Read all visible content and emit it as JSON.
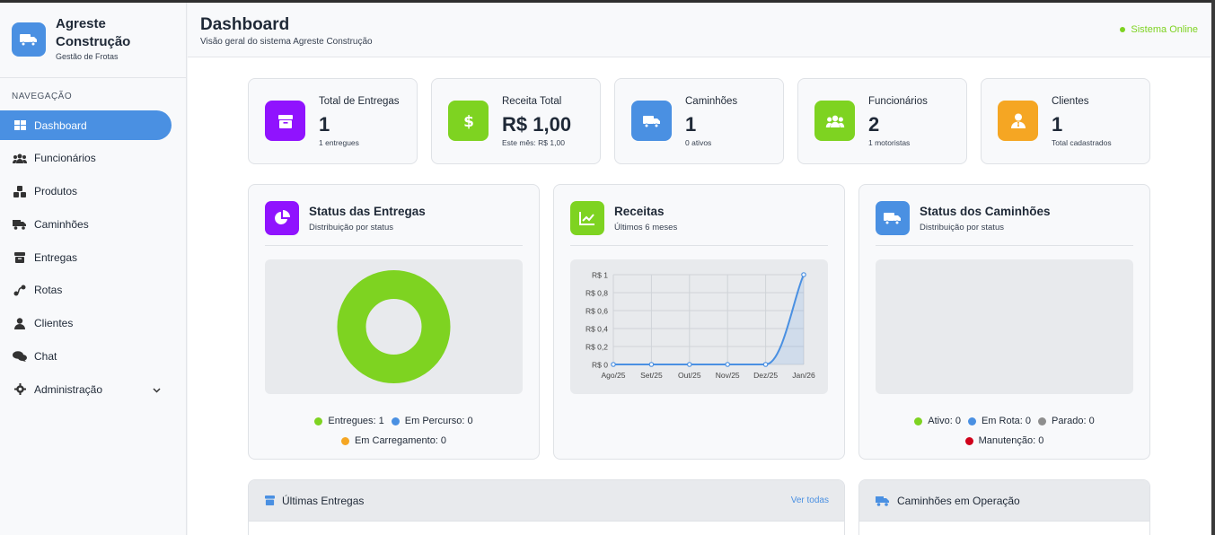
{
  "brand": {
    "name": "Agreste Construção",
    "subtitle": "Gestão de Frotas",
    "logo_icon": "truck-icon"
  },
  "sidebar": {
    "section_title": "NAVEGAÇÃO",
    "items": [
      {
        "label": "Dashboard",
        "icon": "grid-icon",
        "active": true
      },
      {
        "label": "Funcionários",
        "icon": "users-icon"
      },
      {
        "label": "Produtos",
        "icon": "boxes-icon"
      },
      {
        "label": "Caminhões",
        "icon": "truck-icon"
      },
      {
        "label": "Entregas",
        "icon": "box-icon"
      },
      {
        "label": "Rotas",
        "icon": "route-icon"
      },
      {
        "label": "Clientes",
        "icon": "user-icon"
      },
      {
        "label": "Chat",
        "icon": "chat-icon"
      },
      {
        "label": "Administração",
        "icon": "gear-icon",
        "has_submenu": true
      }
    ]
  },
  "header": {
    "title": "Dashboard",
    "subtitle": "Visão geral do sistema Agreste Construção",
    "status": "Sistema Online",
    "status_color": "#7ed321"
  },
  "stats": [
    {
      "label": "Total de Entregas",
      "value": "1",
      "sub": "1 entregues",
      "color": "#9013fe",
      "icon": "box-icon"
    },
    {
      "label": "Receita Total",
      "value": "R$ 1,00",
      "sub": "Este mês: R$ 1,00",
      "color": "#7ed321",
      "icon": "dollar-icon"
    },
    {
      "label": "Caminhões",
      "value": "1",
      "sub": "0 ativos",
      "color": "#4a90e2",
      "icon": "truck-icon"
    },
    {
      "label": "Funcionários",
      "value": "2",
      "sub": "1 motoristas",
      "color": "#7ed321",
      "icon": "users-icon"
    },
    {
      "label": "Clientes",
      "value": "1",
      "sub": "Total cadastrados",
      "color": "#f5a623",
      "icon": "user-tie-icon"
    }
  ],
  "panels": {
    "deliveries": {
      "title": "Status das Entregas",
      "subtitle": "Distribuição por status",
      "legend": [
        {
          "label": "Entregues: 1",
          "color": "#7ed321"
        },
        {
          "label": "Em Percurso: 0",
          "color": "#4a90e2"
        },
        {
          "label": "Em Carregamento: 0",
          "color": "#f5a623"
        }
      ]
    },
    "revenue": {
      "title": "Receitas",
      "subtitle": "Últimos 6 meses"
    },
    "trucks": {
      "title": "Status dos Caminhões",
      "subtitle": "Distribuição por status",
      "legend": [
        {
          "label": "Ativo: 0",
          "color": "#7ed321"
        },
        {
          "label": "Em Rota: 0",
          "color": "#4a90e2"
        },
        {
          "label": "Parado: 0",
          "color": "#8e8e8e"
        },
        {
          "label": "Manutenção: 0",
          "color": "#d0021b"
        }
      ]
    }
  },
  "chart_data": [
    {
      "type": "pie",
      "variant": "doughnut",
      "categories": [
        "Entregues",
        "Em Percurso",
        "Em Carregamento"
      ],
      "values": [
        1,
        0,
        0
      ],
      "colors": [
        "#7ed321",
        "#4a90e2",
        "#f5a623"
      ]
    },
    {
      "type": "area",
      "categories": [
        "Ago/25",
        "Set/25",
        "Out/25",
        "Nov/25",
        "Dez/25",
        "Jan/26"
      ],
      "series": [
        {
          "values": [
            0,
            0,
            0,
            0,
            0,
            1
          ]
        }
      ],
      "ylim": [
        0,
        1
      ],
      "yticks": [
        0,
        0.2,
        0.4,
        0.6,
        0.8,
        1
      ],
      "ytick_labels": [
        "R$ 0",
        "R$ 0,2",
        "R$ 0,4",
        "R$ 0,6",
        "R$ 0,8",
        "R$ 1"
      ],
      "grid": true,
      "color": "#4a90e2"
    }
  ],
  "bottom": {
    "latest_title": "Últimas Entregas",
    "see_all": "Ver todas",
    "trucks_title": "Caminhões em Operação"
  }
}
